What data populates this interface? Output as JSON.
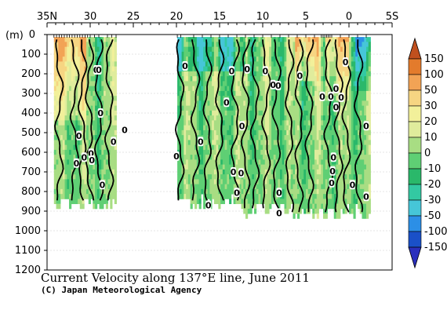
{
  "chart_data": {
    "type": "heatmap",
    "title": "Current Velocity along 137°E line, June 2011",
    "credit": "(C) Japan Meteorological Agency",
    "x_ticks": [
      "35N",
      "30",
      "25",
      "20",
      "15",
      "10",
      "5",
      "0",
      "5S"
    ],
    "x_tick_values": [
      35,
      30,
      25,
      20,
      15,
      10,
      5,
      0,
      -5
    ],
    "xlim": [
      35,
      -5
    ],
    "y_unit_label": "(m)",
    "y_ticks": [
      "0",
      "100",
      "200",
      "300",
      "400",
      "500",
      "600",
      "700",
      "800",
      "900",
      "1000",
      "1100",
      "1200"
    ],
    "y_tick_values": [
      0,
      100,
      200,
      300,
      400,
      500,
      600,
      700,
      800,
      900,
      1000,
      1100,
      1200
    ],
    "ylim": [
      0,
      1200
    ],
    "grid": true,
    "colorbar": {
      "labels": [
        "150",
        "100",
        "50",
        "30",
        "20",
        "10",
        "0",
        "-10",
        "-20",
        "-30",
        "-50",
        "-100",
        "-150"
      ],
      "levels": [
        150,
        100,
        50,
        30,
        20,
        10,
        0,
        -10,
        -20,
        -30,
        -50,
        -100,
        -150
      ],
      "colors": [
        "#c0501e",
        "#e37b2c",
        "#f2a355",
        "#f6d582",
        "#f2f09a",
        "#e0ec9c",
        "#a8dd83",
        "#5fcf74",
        "#2ab86a",
        "#33c9a2",
        "#46c6d8",
        "#2c8fe6",
        "#1a50c8",
        "#2a2fbd"
      ]
    },
    "sections": [
      {
        "lat_start": 34.2,
        "lat_end": 27.0,
        "bottom": 900
      },
      {
        "lat_start": 19.9,
        "lat_end": 12.5,
        "bottom": 900
      },
      {
        "lat_start": 12.5,
        "lat_end": 7.0,
        "bottom": 930
      },
      {
        "lat_start": 7.0,
        "lat_end": -2.3,
        "bottom": 950
      }
    ],
    "zero_contour_labels": [
      {
        "lat": 31.3,
        "depth": 515,
        "text": "0"
      },
      {
        "lat": 31.6,
        "depth": 655,
        "text": "0"
      },
      {
        "lat": 30.7,
        "depth": 625,
        "text": "0"
      },
      {
        "lat": 29.9,
        "depth": 605,
        "text": "0"
      },
      {
        "lat": 29.8,
        "depth": 640,
        "text": "0"
      },
      {
        "lat": 29.3,
        "depth": 180,
        "text": "0"
      },
      {
        "lat": 29.0,
        "depth": 180,
        "text": "0"
      },
      {
        "lat": 28.8,
        "depth": 400,
        "text": "0"
      },
      {
        "lat": 28.6,
        "depth": 765,
        "text": "0"
      },
      {
        "lat": 27.3,
        "depth": 545,
        "text": "0"
      },
      {
        "lat": 26.0,
        "depth": 485,
        "text": "0"
      },
      {
        "lat": 20.0,
        "depth": 620,
        "text": "0"
      },
      {
        "lat": 19.0,
        "depth": 160,
        "text": "0"
      },
      {
        "lat": 17.2,
        "depth": 545,
        "text": "0"
      },
      {
        "lat": 16.3,
        "depth": 870,
        "text": "0"
      },
      {
        "lat": 14.2,
        "depth": 345,
        "text": "0"
      },
      {
        "lat": 13.6,
        "depth": 185,
        "text": "0"
      },
      {
        "lat": 13.4,
        "depth": 700,
        "text": "0"
      },
      {
        "lat": 13.0,
        "depth": 805,
        "text": "0"
      },
      {
        "lat": 12.4,
        "depth": 465,
        "text": "0"
      },
      {
        "lat": 12.5,
        "depth": 705,
        "text": "0"
      },
      {
        "lat": 11.8,
        "depth": 175,
        "text": "0"
      },
      {
        "lat": 9.7,
        "depth": 185,
        "text": "0"
      },
      {
        "lat": 8.8,
        "depth": 255,
        "text": "0"
      },
      {
        "lat": 8.2,
        "depth": 260,
        "text": "0"
      },
      {
        "lat": 8.1,
        "depth": 805,
        "text": "0"
      },
      {
        "lat": 8.1,
        "depth": 910,
        "text": "0"
      },
      {
        "lat": 5.7,
        "depth": 210,
        "text": "0"
      },
      {
        "lat": 3.1,
        "depth": 315,
        "text": "0"
      },
      {
        "lat": 2.1,
        "depth": 315,
        "text": "0"
      },
      {
        "lat": 1.8,
        "depth": 625,
        "text": "0"
      },
      {
        "lat": 1.9,
        "depth": 695,
        "text": "0"
      },
      {
        "lat": 2.0,
        "depth": 755,
        "text": "0"
      },
      {
        "lat": 1.5,
        "depth": 275,
        "text": "0"
      },
      {
        "lat": 1.5,
        "depth": 370,
        "text": "0"
      },
      {
        "lat": 0.9,
        "depth": 320,
        "text": "0"
      },
      {
        "lat": 0.4,
        "depth": 140,
        "text": "0"
      },
      {
        "lat": -0.4,
        "depth": 765,
        "text": "0"
      },
      {
        "lat": -2.0,
        "depth": 465,
        "text": "0"
      },
      {
        "lat": -2.0,
        "depth": 825,
        "text": "0"
      }
    ]
  }
}
